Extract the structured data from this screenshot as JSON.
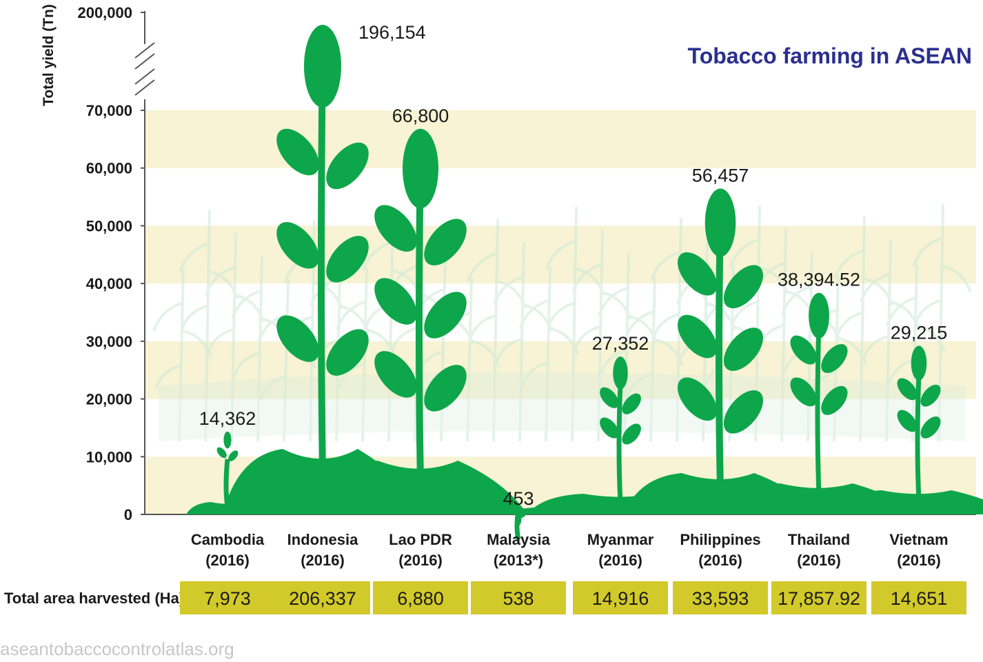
{
  "chart_data": {
    "type": "bar",
    "title": "Tobacco farming in ASEAN",
    "ylabel": "Total yield (Tn)",
    "yticks": [
      "0",
      "10,000",
      "20,000",
      "30,000",
      "40,000",
      "50,000",
      "60,000",
      "70,000",
      "200,000"
    ],
    "ylim": [
      0,
      70000
    ],
    "axis_break": true,
    "grid": "alternating bands",
    "categories": [
      {
        "name": "Cambodia",
        "year": "(2016)"
      },
      {
        "name": "Indonesia",
        "year": "(2016)"
      },
      {
        "name": "Lao PDR",
        "year": "(2016)"
      },
      {
        "name": "Malaysia",
        "year": "(2013*)"
      },
      {
        "name": "Myanmar",
        "year": "(2016)"
      },
      {
        "name": "Philippines",
        "year": "(2016)"
      },
      {
        "name": "Thailand",
        "year": "(2016)"
      },
      {
        "name": "Vietnam",
        "year": "(2016)"
      }
    ],
    "values": [
      14362,
      196154,
      66800,
      453,
      27352,
      56457,
      38394.52,
      29215
    ],
    "value_labels": [
      "14,362",
      "196,154",
      "66,800",
      "453",
      "27,352",
      "56,457",
      "38,394.52",
      "29,215"
    ],
    "area_row_label": "Total area harvested (Ha)",
    "area_values": [
      "7,973",
      "206,337",
      "6,880",
      "538",
      "14,916",
      "33,593",
      "17,857.92",
      "14,651"
    ]
  },
  "footer": "aseantobaccocontrolatlas.org",
  "colors": {
    "plant": "#0ea64a",
    "band": "#f7f3d4",
    "area_box": "#d2c92a",
    "title": "#2b2f8f",
    "background_field": "#cfe9d9"
  }
}
